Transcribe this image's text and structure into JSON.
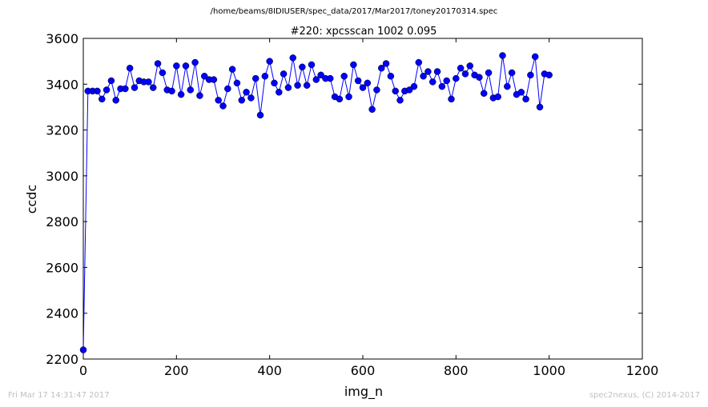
{
  "figure": {
    "suptitle": "/home/beams/8IDIUSER/spec_data/2017/Mar2017/toney20170314.spec",
    "footer_left": "Fri Mar 17 14:31:47 2017",
    "footer_right": "spec2nexus, (C) 2014-2017"
  },
  "colors": {
    "line": "#0000ff",
    "marker": "#0000ff",
    "footer": "#c0c0c0"
  },
  "chart_data": {
    "type": "line",
    "title": "#220: xpcsscan 1002 0.095",
    "xlabel": "img_n",
    "ylabel": "ccdc",
    "xlim": [
      0,
      1200
    ],
    "ylim": [
      2200,
      3600
    ],
    "xticks": [
      0,
      200,
      400,
      600,
      800,
      1000,
      1200
    ],
    "yticks": [
      2200,
      2400,
      2600,
      2800,
      3000,
      3200,
      3400,
      3600
    ],
    "grid": false,
    "legend": "none",
    "marker": "circle",
    "series": [
      {
        "x": [
          0,
          10,
          20,
          30,
          40,
          50,
          60,
          70,
          80,
          90,
          100,
          110,
          120,
          130,
          140,
          150,
          160,
          170,
          180,
          190,
          200,
          210,
          220,
          230,
          240,
          250,
          260,
          270,
          280,
          290,
          300,
          310,
          320,
          330,
          340,
          350,
          360,
          370,
          380,
          390,
          400,
          410,
          420,
          430,
          440,
          450,
          460,
          470,
          480,
          490,
          500,
          510,
          520,
          530,
          540,
          550,
          560,
          570,
          580,
          590,
          600,
          610,
          620,
          630,
          640,
          650,
          660,
          670,
          680,
          690,
          700,
          710,
          720,
          730,
          740,
          750,
          760,
          770,
          780,
          790,
          800,
          810,
          820,
          830,
          840,
          850,
          860,
          870,
          880,
          890,
          900,
          910,
          920,
          930,
          940,
          950,
          960,
          970,
          980,
          990,
          1000
        ],
        "y": [
          2240,
          3370,
          3370,
          3370,
          3335,
          3375,
          3415,
          3330,
          3380,
          3380,
          3470,
          3385,
          3415,
          3410,
          3410,
          3385,
          3490,
          3450,
          3375,
          3370,
          3480,
          3355,
          3480,
          3375,
          3495,
          3350,
          3435,
          3420,
          3420,
          3330,
          3305,
          3380,
          3465,
          3405,
          3330,
          3365,
          3340,
          3425,
          3265,
          3435,
          3500,
          3405,
          3365,
          3445,
          3385,
          3515,
          3395,
          3475,
          3395,
          3485,
          3420,
          3440,
          3425,
          3425,
          3345,
          3335,
          3435,
          3345,
          3485,
          3415,
          3385,
          3405,
          3290,
          3375,
          3470,
          3490,
          3435,
          3370,
          3330,
          3370,
          3375,
          3390,
          3495,
          3435,
          3455,
          3410,
          3455,
          3390,
          3415,
          3335,
          3425,
          3470,
          3445,
          3480,
          3440,
          3430,
          3360,
          3450,
          3340,
          3345,
          3525,
          3390,
          3450,
          3355,
          3365,
          3335,
          3440,
          3520,
          3300,
          3445,
          3440
        ]
      }
    ]
  }
}
